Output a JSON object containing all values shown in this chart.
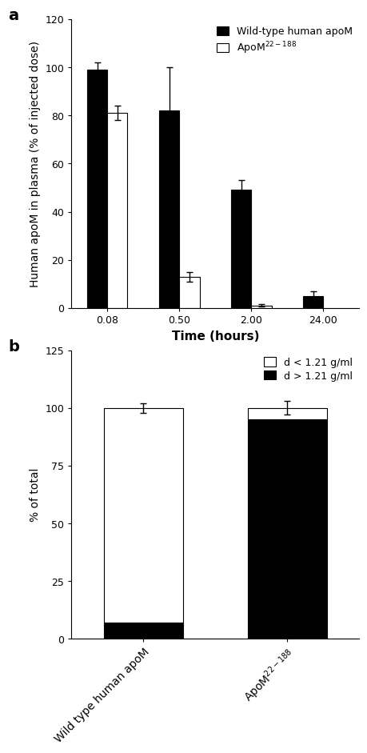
{
  "panel_a": {
    "time_labels": [
      "0.08",
      "0.50",
      "2.00",
      "24.00"
    ],
    "wt_values": [
      99,
      82,
      49,
      5
    ],
    "wt_errors": [
      3,
      18,
      4,
      2
    ],
    "mut_values": [
      81,
      13,
      1,
      null
    ],
    "mut_errors": [
      3,
      2,
      0.5,
      null
    ],
    "ylabel": "Human apoM in plasma (% of injected dose)",
    "xlabel": "Time (hours)",
    "ylim": [
      0,
      120
    ],
    "yticks": [
      0,
      20,
      40,
      60,
      80,
      100,
      120
    ],
    "legend_wt": "Wild-type human apoM",
    "legend_mut": "ApoM$^{22-188}$",
    "bar_width": 0.28
  },
  "panel_b": {
    "categories": [
      "Wild type human apoM",
      "ApoM$^{22-188}$"
    ],
    "low_d_values": [
      93,
      5
    ],
    "high_d_values": [
      7,
      95
    ],
    "low_d_errors": [
      2,
      2
    ],
    "high_d_errors": [
      2,
      3
    ],
    "total_errors": [
      2,
      3
    ],
    "ylabel": "% of total",
    "ylim": [
      0,
      125
    ],
    "yticks": [
      0,
      25,
      50,
      75,
      100,
      125
    ],
    "legend_low": "d < 1.21 g/ml",
    "legend_high": "d > 1.21 g/ml",
    "bar_width": 0.55
  },
  "panel_a_label": "a",
  "panel_b_label": "b",
  "background_color": "#ffffff",
  "bar_color_black": "#000000",
  "bar_color_white": "#ffffff",
  "bar_edge_color": "#000000",
  "font_size": 10,
  "label_font_size": 11,
  "tick_font_size": 9
}
